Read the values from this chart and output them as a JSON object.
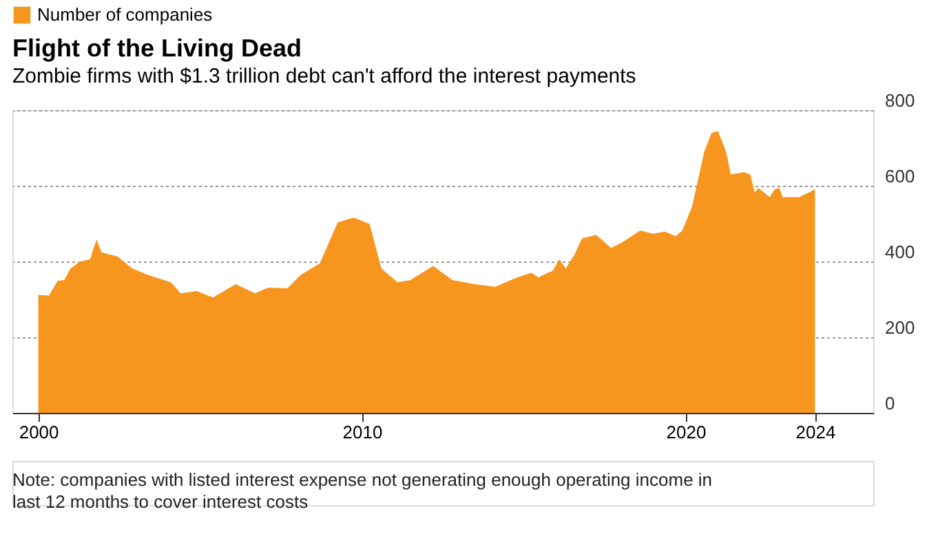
{
  "chart_data": {
    "type": "area",
    "title": "Flight of the Living Dead",
    "subtitle": "Zombie firms with $1.3 trillion debt can't afford the interest payments",
    "x": [
      2000.0,
      2000.33,
      2000.6,
      2000.8,
      2001.0,
      2001.3,
      2001.6,
      2001.8,
      2001.95,
      2002.45,
      2002.9,
      2003.4,
      2004.1,
      2004.4,
      2004.9,
      2005.4,
      2006.1,
      2006.7,
      2007.1,
      2007.7,
      2008.1,
      2008.7,
      2009.25,
      2009.75,
      2010.24,
      2010.6,
      2011.1,
      2011.5,
      2012.2,
      2012.8,
      2013.5,
      2014.12,
      2014.8,
      2015.23,
      2015.45,
      2015.9,
      2016.1,
      2016.3,
      2016.57,
      2016.8,
      2017.24,
      2017.7,
      2018.0,
      2018.6,
      2019.0,
      2019.35,
      2019.7,
      2019.9,
      2020.2,
      2020.36,
      2020.58,
      2020.8,
      2021.0,
      2021.25,
      2021.4,
      2021.8,
      2022.0,
      2022.14,
      2022.25,
      2022.6,
      2022.75,
      2022.9,
      2023.0,
      2023.5,
      2023.8,
      2024.0
    ],
    "series": [
      {
        "name": "Number of companies",
        "color": "#f7961e",
        "values": [
          312,
          310,
          349,
          351,
          382,
          400,
          406,
          458,
          424,
          413,
          382,
          364,
          345,
          316,
          322,
          305,
          340,
          316,
          331,
          329,
          364,
          395,
          503,
          516,
          499,
          382,
          345,
          351,
          388,
          351,
          340,
          333,
          358,
          370,
          358,
          376,
          406,
          382,
          418,
          461,
          470,
          436,
          448,
          482,
          473,
          479,
          467,
          482,
          545,
          606,
          691,
          739,
          745,
          691,
          630,
          636,
          630,
          582,
          594,
          570,
          591,
          594,
          570,
          570,
          582,
          591
        ]
      }
    ],
    "xlim": [
      1999.2,
      2025.8
    ],
    "xticks": [
      2000,
      2010,
      2020,
      2024
    ],
    "ylim": [
      0,
      800
    ],
    "yticks": [
      0,
      200,
      400,
      600,
      800
    ],
    "grid": "y",
    "legend": "top left",
    "annotations": [
      "Note: companies with listed interest expense not generating enough operating income in last 12 months to cover interest costs"
    ]
  }
}
